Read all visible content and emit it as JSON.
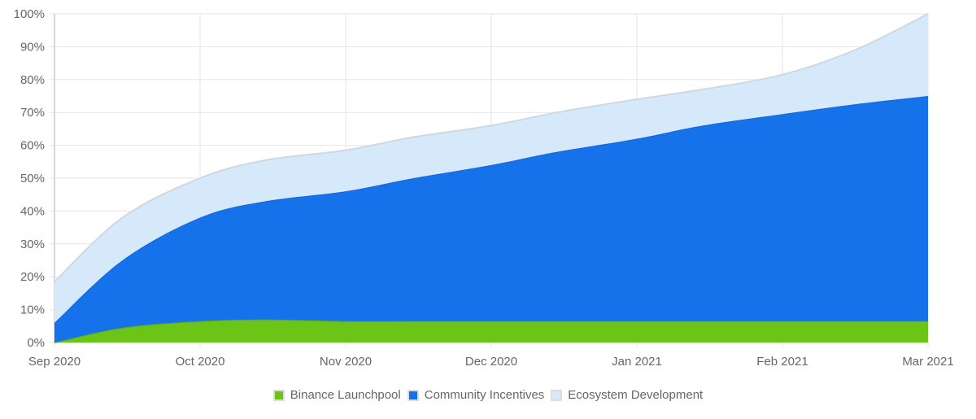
{
  "chart_data": {
    "type": "area",
    "stacked": true,
    "title": "",
    "xlabel": "",
    "ylabel": "",
    "ylim": [
      0,
      100
    ],
    "y_ticks": [
      "0%",
      "10%",
      "20%",
      "30%",
      "40%",
      "50%",
      "60%",
      "70%",
      "80%",
      "90%",
      "100%"
    ],
    "x_ticks": [
      "Sep 2020",
      "Oct 2020",
      "Nov 2020",
      "Dec 2020",
      "Jan 2021",
      "Feb 2021",
      "Mar 2021"
    ],
    "grid": true,
    "legend_position": "bottom",
    "x": [
      "2020-09-01",
      "2020-09-15",
      "2020-10-01",
      "2020-10-15",
      "2020-11-01",
      "2020-11-15",
      "2020-12-01",
      "2020-12-15",
      "2021-01-01",
      "2021-01-15",
      "2021-02-01",
      "2021-02-15",
      "2021-03-01"
    ],
    "series": [
      {
        "name": "Binance Launchpool",
        "color": "#6cc417",
        "values": [
          0,
          4.5,
          6.5,
          7,
          6.5,
          6.5,
          6.5,
          6.5,
          6.5,
          6.5,
          6.5,
          6.5,
          6.5
        ]
      },
      {
        "name": "Community Incentives",
        "color": "#1672ea",
        "values": [
          6,
          20.5,
          31.5,
          36,
          39.5,
          43.5,
          47.5,
          51.5,
          55.5,
          59.5,
          63,
          66,
          68.5
        ]
      },
      {
        "name": "Ecosystem Development",
        "color": "#d6e9fb",
        "values": [
          12.5,
          13,
          12,
          12.5,
          12.5,
          12.5,
          12,
          12,
          12,
          11,
          12,
          16.5,
          25
        ]
      }
    ]
  }
}
